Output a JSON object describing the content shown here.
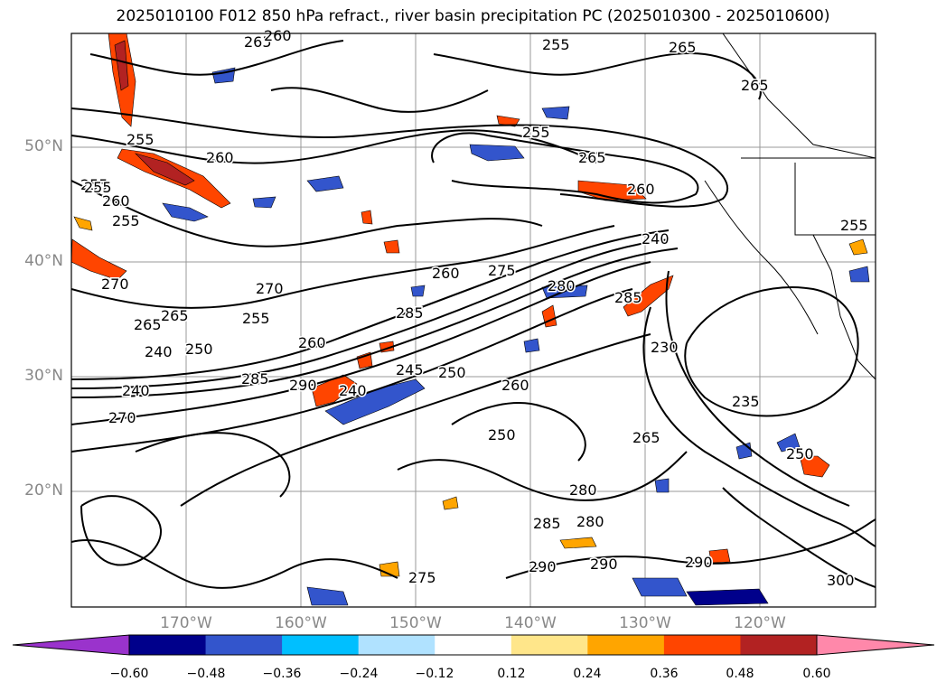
{
  "title": "2025010100 F012 850 hPa refract., river basin precipitation PC (2025010300 - 2025010600)",
  "map": {
    "lat_labels": [
      "50°N",
      "40°N",
      "30°N",
      "20°N"
    ],
    "lon_labels": [
      "170°W",
      "160°W",
      "150°W",
      "140°W",
      "130°W",
      "120°W"
    ],
    "contour_labels": [
      "265",
      "260",
      "255",
      "260",
      "255",
      "255",
      "265",
      "260",
      "255",
      "265",
      "265",
      "255",
      "260",
      "255",
      "270",
      "270",
      "265",
      "265",
      "255",
      "260",
      "240",
      "250",
      "260",
      "275",
      "285",
      "280",
      "285",
      "240",
      "230",
      "235",
      "240",
      "240",
      "245",
      "250",
      "260",
      "265",
      "285",
      "275",
      "290",
      "290",
      "290",
      "280",
      "285",
      "280",
      "290",
      "300",
      "250",
      "250",
      "270",
      "255"
    ],
    "field": "850 hPa refractivity contours with precipitation PC shading"
  },
  "colorbar": {
    "ticks": [
      "−0.60",
      "−0.48",
      "−0.36",
      "−0.24",
      "−0.12",
      "0.12",
      "0.24",
      "0.36",
      "0.48",
      "0.60"
    ],
    "colors": [
      "#9a33cc",
      "#00008b",
      "#3355cc",
      "#00bfff",
      "#b0e2ff",
      "#ffffff",
      "#ffe68a",
      "#ffa500",
      "#ff4500",
      "#b22222",
      "#ff88aa"
    ],
    "extend": "both"
  }
}
